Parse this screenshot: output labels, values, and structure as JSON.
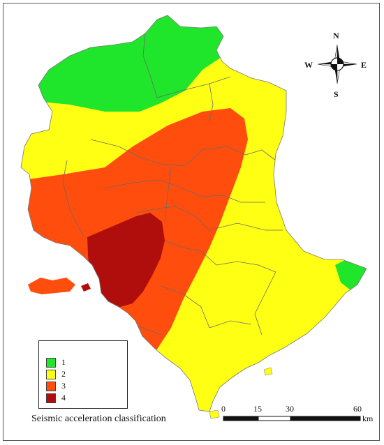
{
  "legend": {
    "title": "Seismic acceleration classification",
    "items": [
      {
        "label": "1",
        "color": "#1fe62a"
      },
      {
        "label": "2",
        "color": "#ffff14"
      },
      {
        "label": "3",
        "color": "#ff4d0d"
      },
      {
        "label": "4",
        "color": "#b00d0d"
      }
    ]
  },
  "compass": {
    "north": "N",
    "south": "S",
    "west": "W",
    "east": "E"
  },
  "scale_bar": {
    "ticks": [
      "0",
      "15",
      "30",
      "60"
    ],
    "unit": "km"
  }
}
